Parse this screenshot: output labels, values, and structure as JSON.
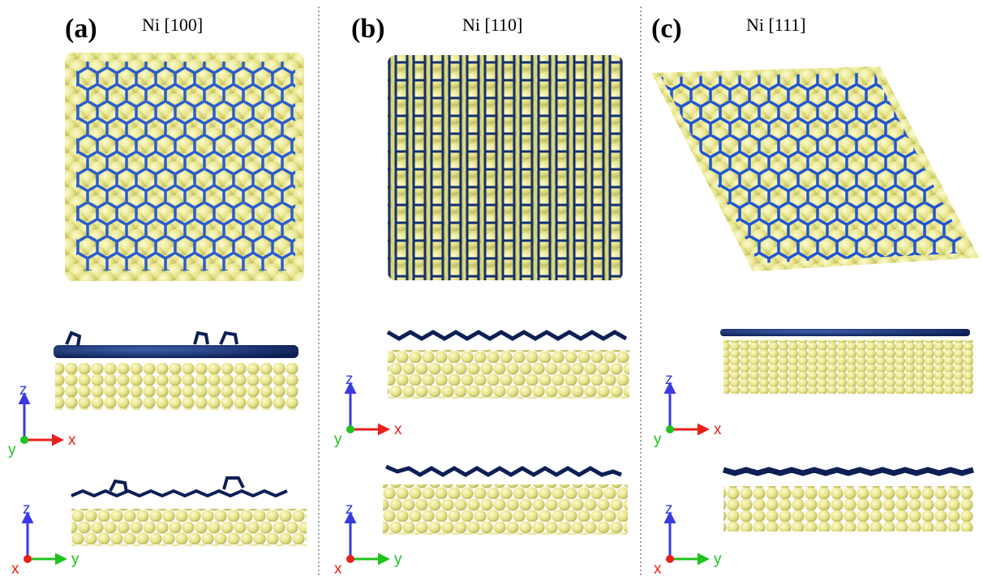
{
  "panels": [
    {
      "label": "(a)",
      "title": "Ni [100]",
      "axes": [
        {
          "up": "z",
          "right": "x",
          "out": "y"
        },
        {
          "up": "z",
          "right": "y",
          "out": "x"
        }
      ]
    },
    {
      "label": "(b)",
      "title": "Ni [110]",
      "axes": [
        {
          "up": "z",
          "right": "x",
          "out": "y"
        },
        {
          "up": "z",
          "right": "y",
          "out": "x"
        }
      ]
    },
    {
      "label": "(c)",
      "title": "Ni [111]",
      "axes": [
        {
          "up": "z",
          "right": "x",
          "out": "y"
        },
        {
          "up": "z",
          "right": "y",
          "out": "x"
        }
      ]
    }
  ]
}
